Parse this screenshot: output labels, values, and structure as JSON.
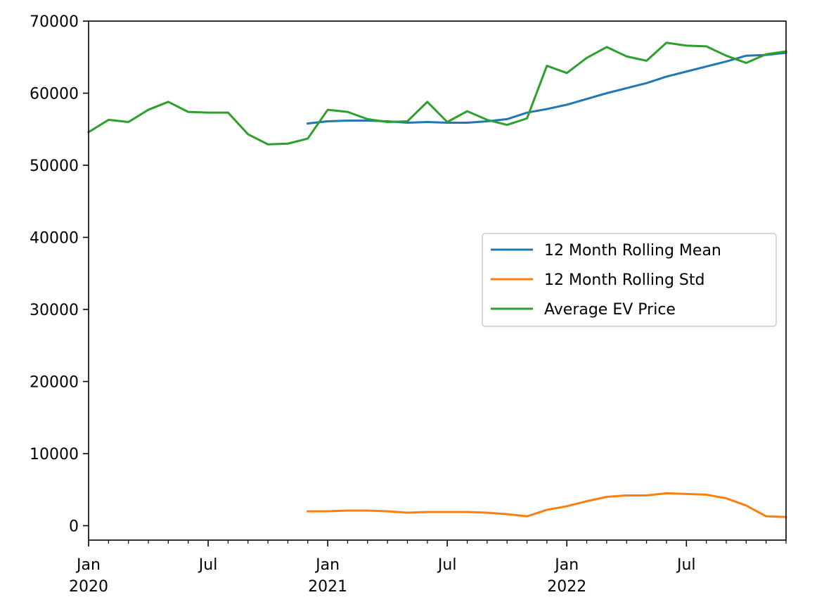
{
  "chart_data": {
    "type": "line",
    "x": [
      "2020-01",
      "2020-02",
      "2020-03",
      "2020-04",
      "2020-05",
      "2020-06",
      "2020-07",
      "2020-08",
      "2020-09",
      "2020-10",
      "2020-11",
      "2020-12",
      "2021-01",
      "2021-02",
      "2021-03",
      "2021-04",
      "2021-05",
      "2021-06",
      "2021-07",
      "2021-08",
      "2021-09",
      "2021-10",
      "2021-11",
      "2021-12",
      "2022-01",
      "2022-02",
      "2022-03",
      "2022-04",
      "2022-05",
      "2022-06",
      "2022-07",
      "2022-08",
      "2022-09",
      "2022-10",
      "2022-11",
      "2022-12"
    ],
    "series": [
      {
        "name": "12 Month Rolling Mean",
        "color": "#1f77b4",
        "values": [
          null,
          null,
          null,
          null,
          null,
          null,
          null,
          null,
          null,
          null,
          null,
          55800,
          56100,
          56200,
          56200,
          56100,
          55900,
          56000,
          55900,
          55900,
          56100,
          56400,
          57300,
          57800,
          58400,
          59200,
          60000,
          60700,
          61400,
          62300,
          63000,
          63700,
          64400,
          65200,
          65300,
          65600
        ]
      },
      {
        "name": "12 Month Rolling Std",
        "color": "#ff7f0e",
        "values": [
          null,
          null,
          null,
          null,
          null,
          null,
          null,
          null,
          null,
          null,
          null,
          2000,
          2000,
          2100,
          2100,
          2000,
          1800,
          1900,
          1900,
          1900,
          1800,
          1600,
          1300,
          2200,
          2700,
          3400,
          4000,
          4200,
          4200,
          4500,
          4400,
          4300,
          3800,
          2800,
          1300,
          1200
        ]
      },
      {
        "name": "Average EV Price",
        "color": "#2ca02c",
        "values": [
          54600,
          56300,
          56000,
          57700,
          58800,
          57400,
          57300,
          57300,
          54300,
          52900,
          53000,
          53700,
          57700,
          57400,
          56400,
          56000,
          56100,
          58800,
          56000,
          57500,
          56300,
          55600,
          56500,
          63800,
          62800,
          64900,
          66400,
          65100,
          64500,
          67000,
          66600,
          66500,
          65200,
          64200,
          65400,
          65800
        ]
      }
    ],
    "ylim": [
      -2000,
      70000
    ],
    "yticks": [
      0,
      10000,
      20000,
      30000,
      40000,
      50000,
      60000,
      70000
    ],
    "ytick_labels": [
      "0",
      "10000",
      "20000",
      "30000",
      "40000",
      "50000",
      "60000",
      "70000"
    ],
    "xticks_major": [
      {
        "month_index": 0,
        "label": "Jan",
        "year": "2020"
      },
      {
        "month_index": 6,
        "label": "Jul",
        "year": ""
      },
      {
        "month_index": 12,
        "label": "Jan",
        "year": "2021"
      },
      {
        "month_index": 18,
        "label": "Jul",
        "year": ""
      },
      {
        "month_index": 24,
        "label": "Jan",
        "year": "2022"
      },
      {
        "month_index": 30,
        "label": "Jul",
        "year": ""
      }
    ],
    "grid": false,
    "legend_position": "center-right",
    "title": "",
    "xlabel": "",
    "ylabel": ""
  }
}
